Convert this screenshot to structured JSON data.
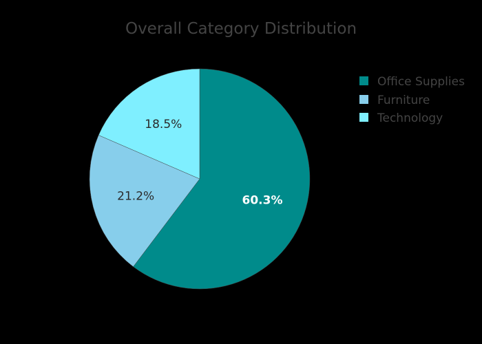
{
  "chart_data": {
    "type": "pie",
    "title": "Overall Category Distribution",
    "categories": [
      "Office Supplies",
      "Furniture",
      "Technology"
    ],
    "values": [
      60.3,
      21.2,
      18.5
    ],
    "labels": [
      "60.3%",
      "21.2%",
      "18.5%"
    ],
    "colors": [
      "#008B8B",
      "#87CEEB",
      "#7FEFFF"
    ],
    "label_colors": [
      "#FFFFFF",
      "#2a2a2a",
      "#2a2a2a"
    ],
    "direction": "clockwise",
    "start_angle": "top",
    "legend": {
      "position": "top-right",
      "items": [
        {
          "label": "Office Supplies",
          "color": "#008B8B"
        },
        {
          "label": "Furniture",
          "color": "#87CEEB"
        },
        {
          "label": "Technology",
          "color": "#7FEFFF"
        }
      ]
    },
    "background": "#000000"
  }
}
